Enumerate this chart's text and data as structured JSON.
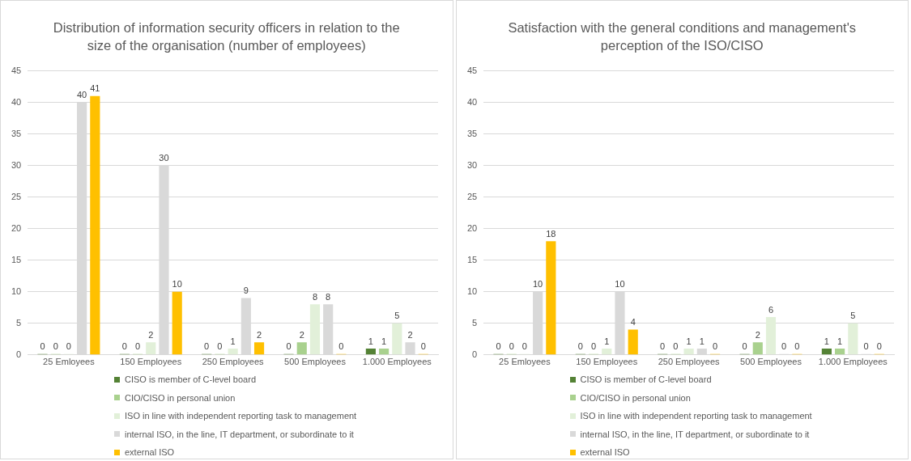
{
  "chart_data": [
    {
      "type": "bar",
      "title": "Distribution of information security officers in relation to the size of the organisation (number of employees)",
      "categories": [
        "25 Emloyees",
        "150 Employees",
        "250 Employees",
        "500 Employees",
        "1.000 Employees"
      ],
      "series": [
        {
          "name": "CISO is member of C-level board",
          "color": "#548235",
          "values": [
            0,
            0,
            0,
            0,
            1
          ]
        },
        {
          "name": "CIO/CISO in personal union",
          "color": "#a9d18e",
          "values": [
            0,
            0,
            0,
            2,
            1
          ]
        },
        {
          "name": "ISO in line with independent reporting task to management",
          "color": "#e2f0d9",
          "values": [
            0,
            2,
            1,
            8,
            5
          ]
        },
        {
          "name": "internal ISO, in the line, IT department, or subordinate to it",
          "color": "#d9d9d9",
          "values": [
            40,
            30,
            9,
            8,
            2
          ]
        },
        {
          "name": "external ISO",
          "color": "#ffc000",
          "values": [
            41,
            10,
            2,
            0,
            0
          ]
        }
      ],
      "ylim": [
        0,
        45
      ],
      "yticks": [
        0,
        5,
        10,
        15,
        20,
        25,
        30,
        35,
        40,
        45
      ],
      "grid": "y",
      "legend": "bottom",
      "data_labels": true
    },
    {
      "type": "bar",
      "title": "Satisfaction with the general conditions and management's perception of the ISO/CISO",
      "categories": [
        "25 Emloyees",
        "150 Employees",
        "250 Employees",
        "500 Employees",
        "1.000 Employees"
      ],
      "series": [
        {
          "name": "CISO is member of C-level board",
          "color": "#548235",
          "values": [
            0,
            0,
            0,
            0,
            1
          ]
        },
        {
          "name": "CIO/CISO in personal union",
          "color": "#a9d18e",
          "values": [
            0,
            0,
            0,
            2,
            1
          ]
        },
        {
          "name": "ISO in line with independent reporting task to management",
          "color": "#e2f0d9",
          "values": [
            0,
            1,
            1,
            6,
            5
          ]
        },
        {
          "name": "internal ISO, in the line, IT department, or subordinate to it",
          "color": "#d9d9d9",
          "values": [
            10,
            10,
            1,
            0,
            0
          ]
        },
        {
          "name": "external ISO",
          "color": "#ffc000",
          "values": [
            18,
            4,
            0,
            0,
            0
          ]
        }
      ],
      "ylim": [
        0,
        45
      ],
      "yticks": [
        0,
        5,
        10,
        15,
        20,
        25,
        30,
        35,
        40,
        45
      ],
      "grid": "y",
      "legend": "bottom",
      "data_labels": true
    }
  ]
}
